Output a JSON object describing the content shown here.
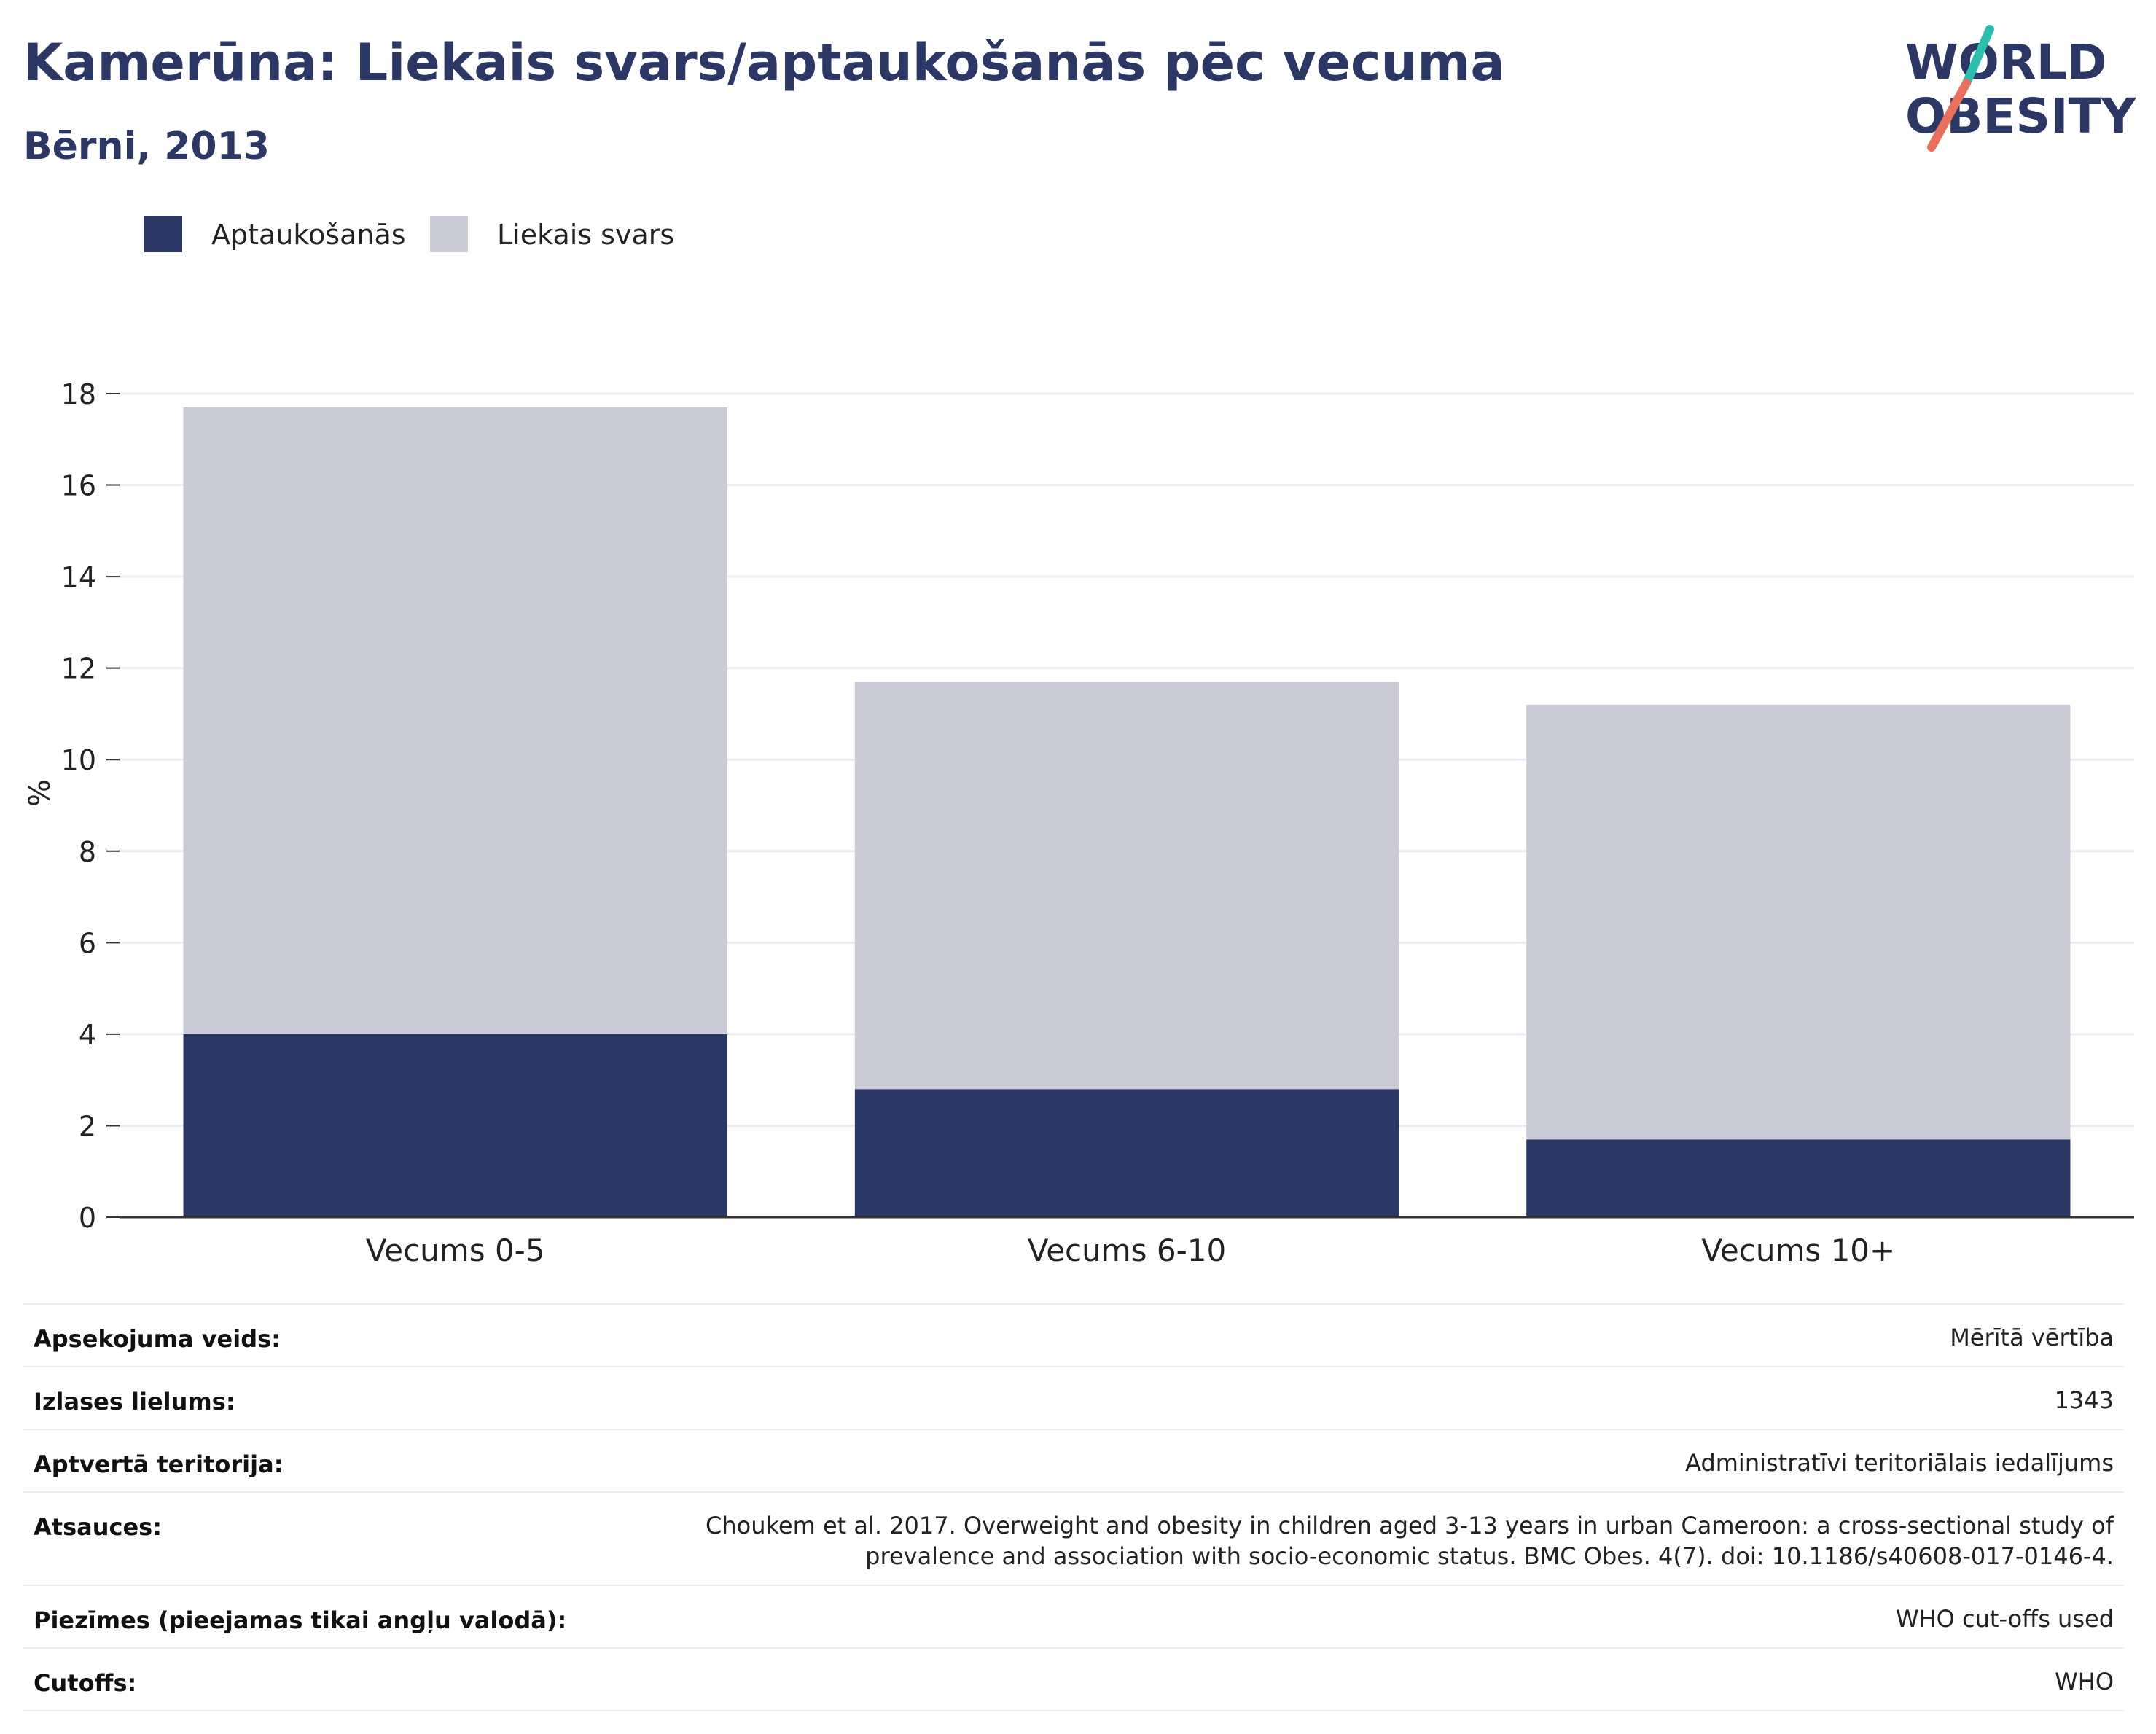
{
  "header": {
    "title": "Kamerūna: Liekais svars/aptaukošanās pēc vecuma",
    "subtitle": "Bērni, 2013"
  },
  "logo": {
    "line1": "WORLD",
    "line2": "OBESITY",
    "slash_top_color": "#2bbfb0",
    "slash_bottom_color": "#e8705c",
    "text_color": "#2b3865"
  },
  "colors": {
    "obesity": "#2b3865",
    "overweight": "#cacbd6",
    "text": "#2b3865",
    "grid": "#e9ecf2",
    "axis": "#333333"
  },
  "legend": [
    {
      "label": "Aptaukošanās",
      "color": "#2b3865"
    },
    {
      "label": "Liekais svars",
      "color": "#cacbd6"
    }
  ],
  "chart_data": {
    "type": "bar",
    "stacked": true,
    "categories": [
      "Vecums 0-5",
      "Vecums 6-10",
      "Vecums 10+"
    ],
    "series": [
      {
        "name": "Aptaukošanās",
        "values": [
          4.0,
          2.8,
          1.7
        ]
      },
      {
        "name": "Liekais svars",
        "values": [
          13.7,
          8.9,
          9.5
        ]
      }
    ],
    "ylabel": "%",
    "ylim": [
      0,
      18
    ],
    "yticks": [
      0,
      2,
      4,
      6,
      8,
      10,
      12,
      14,
      16,
      18
    ],
    "grid": true
  },
  "meta": [
    {
      "key": "Apsekojuma veids:",
      "value": "Mērītā vērtība"
    },
    {
      "key": "Izlases lielums:",
      "value": "1343"
    },
    {
      "key": "Aptvertā teritorija:",
      "value": "Administratīvi teritoriālais iedalījums"
    },
    {
      "key": "Atsauces:",
      "value": "Choukem et al. 2017. Overweight and obesity in children aged 3-13 years in urban Cameroon: a cross-sectional study of prevalence and association with socio-economic status. BMC Obes. 4(7). doi: 10.1186/s40608-017-0146-4."
    },
    {
      "key": "Piezīmes (pieejamas tikai angļu valodā):",
      "value": "WHO cut-offs used"
    },
    {
      "key": "Cutoffs:",
      "value": "WHO"
    }
  ]
}
